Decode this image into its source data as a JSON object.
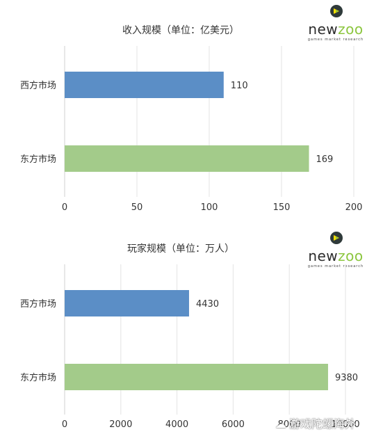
{
  "chart_data": [
    {
      "type": "bar",
      "orientation": "horizontal",
      "title": "收入规模（单位：亿美元）",
      "categories": [
        "西方市场",
        "东方市场"
      ],
      "values": [
        110,
        169
      ],
      "colors": [
        "#5b8ec6",
        "#a3cb8a"
      ],
      "xlim": [
        0,
        200
      ],
      "xticks": [
        "0",
        "50",
        "100",
        "150",
        "200"
      ],
      "grid": true,
      "logo": {
        "text_left": "new",
        "text_right": "zoo",
        "tagline": "games market research"
      }
    },
    {
      "type": "bar",
      "orientation": "horizontal",
      "title": "玩家规模（单位：万人）",
      "categories": [
        "西方市场",
        "东方市场"
      ],
      "values": [
        4430,
        9380
      ],
      "colors": [
        "#5b8ec6",
        "#a3cb8a"
      ],
      "xlim": [
        0,
        10000
      ],
      "xticks": [
        "0",
        "2000",
        "4000",
        "6000",
        "8000",
        "10000"
      ],
      "grid": true,
      "logo": {
        "text_left": "new",
        "text_right": "zoo",
        "tagline": "games market research"
      }
    }
  ],
  "watermark": {
    "text": "游戏陀螺海外"
  }
}
